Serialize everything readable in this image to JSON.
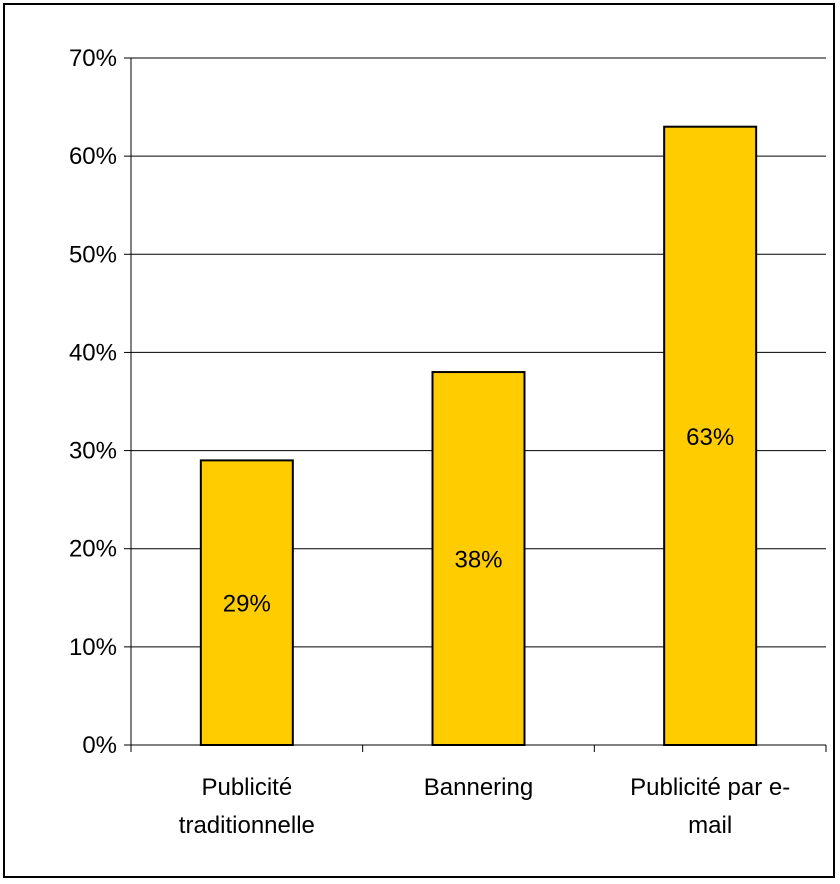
{
  "chart_data": {
    "type": "bar",
    "categories": [
      [
        "Publicité",
        "traditionnelle"
      ],
      [
        "Bannering"
      ],
      [
        "Publicité par e-",
        "mail"
      ]
    ],
    "values": [
      29,
      38,
      63
    ],
    "data_labels": [
      "29%",
      "38%",
      "63%"
    ],
    "ylim": [
      0,
      70
    ],
    "yticks": [
      0,
      10,
      20,
      30,
      40,
      50,
      60,
      70
    ],
    "ytick_labels": [
      "0%",
      "10%",
      "20%",
      "30%",
      "40%",
      "50%",
      "60%",
      "70%"
    ],
    "title": "",
    "xlabel": "",
    "ylabel": "",
    "grid": true,
    "legend": false,
    "bar_color": "#FFCC00",
    "bar_edge_color": "#000000"
  }
}
